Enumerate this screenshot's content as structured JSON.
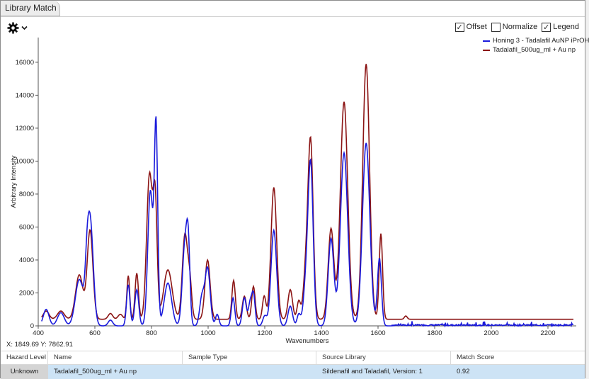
{
  "window": {
    "tab_title": "Library Match"
  },
  "toolbar": {
    "settings_icon": "gear-icon",
    "dropdown_icon": "chevron-down-icon"
  },
  "options": [
    {
      "label": "Offset",
      "checked": true
    },
    {
      "label": "Normalize",
      "checked": false
    },
    {
      "label": "Legend",
      "checked": true
    }
  ],
  "cursor_readout": "X: 1849.69  Y: 7862.91",
  "table": {
    "headers": [
      "Hazard Level",
      "Name",
      "Sample Type",
      "Source Library",
      "Match Score"
    ],
    "rows": [
      {
        "hazard": "Unknown",
        "name": "Tadalafil_500ug_ml + Au np",
        "sample_type": "",
        "source": "Sildenafil and Taladafil, Version: 1",
        "score": "0.92"
      }
    ]
  },
  "chart_data": {
    "type": "line",
    "xlabel": "Wavenumbers",
    "ylabel": "Arbitrary Intensity",
    "xlim": [
      400,
      2300
    ],
    "ylim": [
      0,
      17500
    ],
    "xticks": [
      400,
      600,
      800,
      1000,
      1200,
      1400,
      1600,
      1800,
      2000,
      2200
    ],
    "yticks": [
      0,
      2000,
      4000,
      6000,
      8000,
      10000,
      12000,
      14000,
      16000
    ],
    "legend_position": "top-right",
    "series": [
      {
        "name": "Honing 3 - Tadalafil AuNP iPrOH",
        "color": "#1a1adb",
        "baseline": 0,
        "noise_region": [
          1650,
          2290
        ],
        "peaks": [
          [
            428,
            1000,
            10
          ],
          [
            480,
            800,
            12
          ],
          [
            545,
            2800,
            14
          ],
          [
            572,
            1400,
            6
          ],
          [
            583,
            6500,
            11
          ],
          [
            655,
            350,
            8
          ],
          [
            718,
            2500,
            6
          ],
          [
            748,
            2200,
            7
          ],
          [
            796,
            8200,
            9
          ],
          [
            816,
            12000,
            6
          ],
          [
            858,
            2600,
            13
          ],
          [
            918,
            4900,
            9
          ],
          [
            930,
            4000,
            6
          ],
          [
            978,
            1700,
            8
          ],
          [
            998,
            3500,
            9
          ],
          [
            1032,
            700,
            6
          ],
          [
            1088,
            1700,
            6
          ],
          [
            1128,
            1700,
            7
          ],
          [
            1148,
            1300,
            6
          ],
          [
            1160,
            1900,
            6
          ],
          [
            1200,
            600,
            7
          ],
          [
            1232,
            5800,
            10
          ],
          [
            1290,
            1200,
            8
          ],
          [
            1320,
            700,
            6
          ],
          [
            1345,
            2300,
            9
          ],
          [
            1362,
            9700,
            9
          ],
          [
            1434,
            5300,
            10
          ],
          [
            1480,
            10500,
            13
          ],
          [
            1558,
            11100,
            13
          ],
          [
            1605,
            4100,
            7
          ]
        ]
      },
      {
        "name": "Tadalafil_500ug_ml + Au np",
        "color": "#8b1414",
        "baseline": 400,
        "noise_region": [],
        "peaks": [
          [
            428,
            500,
            10
          ],
          [
            480,
            500,
            12
          ],
          [
            545,
            2700,
            13
          ],
          [
            583,
            5400,
            10
          ],
          [
            655,
            350,
            8
          ],
          [
            690,
            300,
            8
          ],
          [
            718,
            2650,
            5
          ],
          [
            748,
            2800,
            6
          ],
          [
            793,
            8800,
            10
          ],
          [
            813,
            7000,
            7
          ],
          [
            858,
            3000,
            15
          ],
          [
            918,
            5100,
            9
          ],
          [
            935,
            2200,
            7
          ],
          [
            998,
            3600,
            9
          ],
          [
            1090,
            2350,
            6
          ],
          [
            1128,
            1400,
            7
          ],
          [
            1160,
            2000,
            6
          ],
          [
            1198,
            1400,
            6
          ],
          [
            1232,
            8000,
            10
          ],
          [
            1290,
            1800,
            8
          ],
          [
            1320,
            1100,
            6
          ],
          [
            1345,
            2700,
            9
          ],
          [
            1362,
            10600,
            9
          ],
          [
            1434,
            5500,
            10
          ],
          [
            1480,
            13200,
            13
          ],
          [
            1558,
            15500,
            12
          ],
          [
            1610,
            5200,
            6
          ],
          [
            1698,
            200,
            5
          ]
        ]
      }
    ]
  }
}
